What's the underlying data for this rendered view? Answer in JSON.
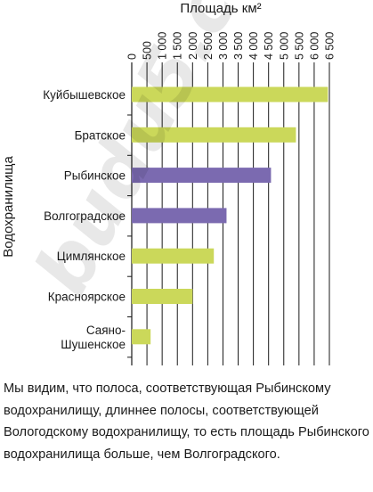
{
  "chart_data": {
    "type": "bar",
    "orientation": "horizontal",
    "title": "",
    "xlabel": "Площадь км²",
    "ylabel": "Водохранилища",
    "categories": [
      "Куйбышевское",
      "Братское",
      "Рыбинское",
      "Волгоградское",
      "Цимлянское",
      "Красноярское",
      "Саяно-Шушенское"
    ],
    "values": [
      6450,
      5400,
      4580,
      3117,
      2700,
      2000,
      620
    ],
    "colors": [
      "#cbd85a",
      "#cbd85a",
      "#7b6ab0",
      "#7b6ab0",
      "#cbd85a",
      "#cbd85a",
      "#cbd85a"
    ],
    "xlim": [
      0,
      6500
    ],
    "xticks": [
      "0",
      "500",
      "1 000",
      "1 500",
      "2 000",
      "2 500",
      "3 000",
      "3 500",
      "4 000",
      "4 500",
      "5 000",
      "5 500",
      "6 000",
      "6 500"
    ],
    "axis_position": "top",
    "grid": true
  },
  "caption": "Мы видим, что полоса, соответствующая Рыбинскому водохранилищу, длиннее полосы, соответствующей Вологодскому водохранилищу, то есть площадь Рыбинского водохранилища больше, чем Волгоградского.",
  "watermark": "budu5.com"
}
